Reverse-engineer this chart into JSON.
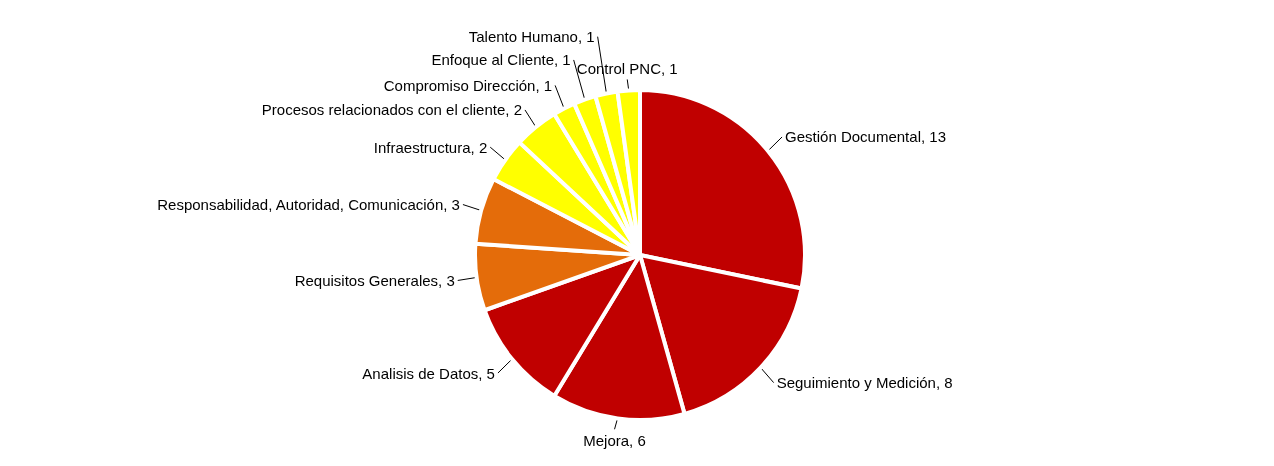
{
  "chart_data": {
    "type": "pie",
    "categories": [
      "Gestión Documental, 13",
      "Seguimiento y Medición, 8",
      "Mejora, 6",
      "Analisis de Datos, 5",
      "Requisitos Generales, 3",
      "Responsabilidad, Autoridad, Comunicación, 3",
      "Infraestructura, 2",
      "Procesos relacionados con el cliente, 2",
      "Compromiso Dirección, 1",
      "Enfoque al Cliente, 1",
      "Talento Humano, 1",
      "Control PNC, 1"
    ],
    "values": [
      13,
      8,
      6,
      5,
      3,
      3,
      2,
      2,
      1,
      1,
      1,
      1
    ],
    "colors": [
      "#c00000",
      "#c00000",
      "#c00000",
      "#c00000",
      "#e46c0a",
      "#e46c0a",
      "#ffff00",
      "#ffff00",
      "#ffff00",
      "#ffff00",
      "#ffff00",
      "#ffff00"
    ],
    "legend": false
  }
}
